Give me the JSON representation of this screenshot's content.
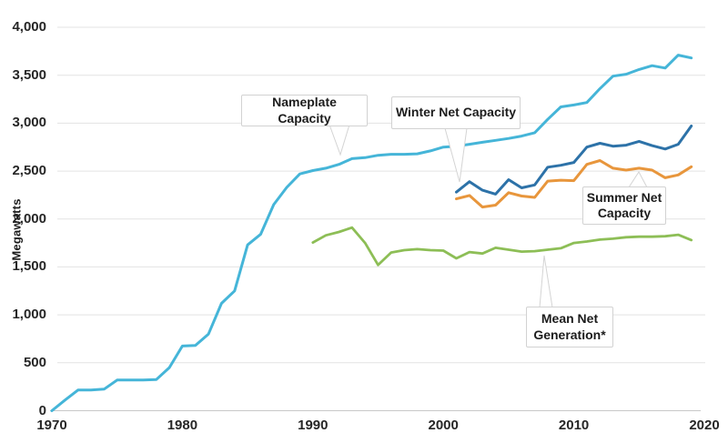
{
  "chart_data": {
    "type": "line",
    "title": "",
    "xlabel": "",
    "ylabel": "Megawatts",
    "xlim": [
      1970,
      2020
    ],
    "ylim": [
      0,
      4000
    ],
    "grid": "horizontal",
    "legend_position": "inline-callouts",
    "x_ticks": [
      {
        "label": "1970",
        "year": 1970
      },
      {
        "label": "1980",
        "year": 1980
      },
      {
        "label": "1990",
        "year": 1990
      },
      {
        "label": "2000",
        "year": 2000
      },
      {
        "label": "2010",
        "year": 2010
      },
      {
        "label": "2020",
        "year": 2020
      }
    ],
    "y_ticks": [
      {
        "label": "0",
        "value": 0
      },
      {
        "label": "500",
        "value": 500
      },
      {
        "label": "1,000",
        "value": 1000
      },
      {
        "label": "1,500",
        "value": 1500
      },
      {
        "label": "2,000",
        "value": 2000
      },
      {
        "label": "2,500",
        "value": 2500
      },
      {
        "label": "3,000",
        "value": 3000
      },
      {
        "label": "3,500",
        "value": 3500
      },
      {
        "label": "4,000",
        "value": 4000
      }
    ],
    "series": [
      {
        "name": "Nameplate Capacity",
        "color": "#45b5d8",
        "width": 3,
        "start_year": 1970,
        "values": [
          0,
          110,
          215,
          215,
          225,
          320,
          320,
          320,
          325,
          450,
          675,
          680,
          800,
          1120,
          1250,
          1730,
          1840,
          2150,
          2330,
          2470,
          2505,
          2530,
          2570,
          2630,
          2640,
          2665,
          2675,
          2675,
          2680,
          2710,
          2750,
          2760,
          2780,
          2800,
          2820,
          2840,
          2865,
          2900,
          3040,
          3170,
          3190,
          3215,
          3360,
          3490,
          3510,
          3560,
          3600,
          3575,
          3710,
          3680
        ]
      },
      {
        "name": "Winter Net Capacity",
        "color": "#2d72a8",
        "width": 3,
        "start_year": 2001,
        "values": [
          2280,
          2390,
          2300,
          2260,
          2410,
          2325,
          2355,
          2540,
          2560,
          2590,
          2750,
          2790,
          2760,
          2770,
          2810,
          2765,
          2730,
          2780,
          2970
        ]
      },
      {
        "name": "Summer Net Capacity",
        "color": "#e8963c",
        "width": 3,
        "start_year": 2001,
        "values": [
          2210,
          2245,
          2125,
          2145,
          2275,
          2240,
          2225,
          2395,
          2405,
          2400,
          2570,
          2610,
          2530,
          2510,
          2530,
          2510,
          2430,
          2460,
          2545
        ]
      },
      {
        "name": "Mean Net Generation*",
        "color": "#8dbe56",
        "width": 2.8,
        "start_year": 1990,
        "values": [
          1755,
          1830,
          1865,
          1910,
          1750,
          1520,
          1650,
          1675,
          1685,
          1675,
          1670,
          1590,
          1655,
          1640,
          1700,
          1680,
          1660,
          1665,
          1680,
          1695,
          1750,
          1765,
          1785,
          1795,
          1810,
          1815,
          1815,
          1820,
          1835,
          1780
        ]
      }
    ],
    "annotations": [
      {
        "text": "Nameplate Capacity"
      },
      {
        "text": "Winter Net Capacity"
      },
      {
        "text": "Summer Net Capacity"
      },
      {
        "text": "Mean Net Generation*"
      }
    ]
  }
}
